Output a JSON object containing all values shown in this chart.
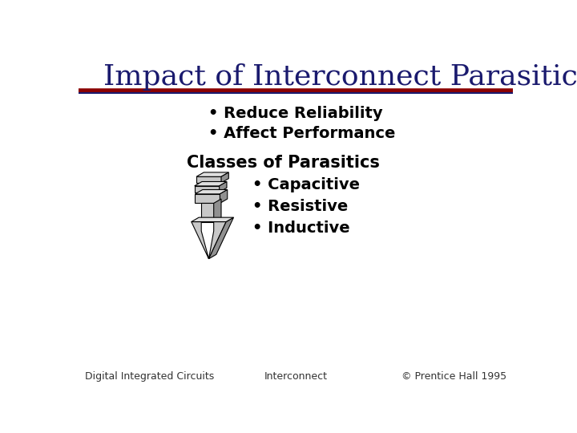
{
  "title": "Impact of Interconnect Parasitics",
  "title_color": "#1a1a6e",
  "title_fontsize": 26,
  "title_font": "serif",
  "bg_color": "#ffffff",
  "line1_color": "#8b0000",
  "line2_color": "#1a1a6e",
  "bullet1": "Reduce Reliability",
  "bullet2": "Affect Performance",
  "classes_title": "Classes of Parasitics",
  "class1": "Capacitive",
  "class2": "Resistive",
  "class3": "Inductive",
  "footer_left": "Digital Integrated Circuits",
  "footer_center": "Interconnect",
  "footer_right": "© Prentice Hall 1995",
  "footer_fontsize": 9,
  "footer_color": "#333333",
  "text_fontsize": 14,
  "classes_fontsize": 15
}
